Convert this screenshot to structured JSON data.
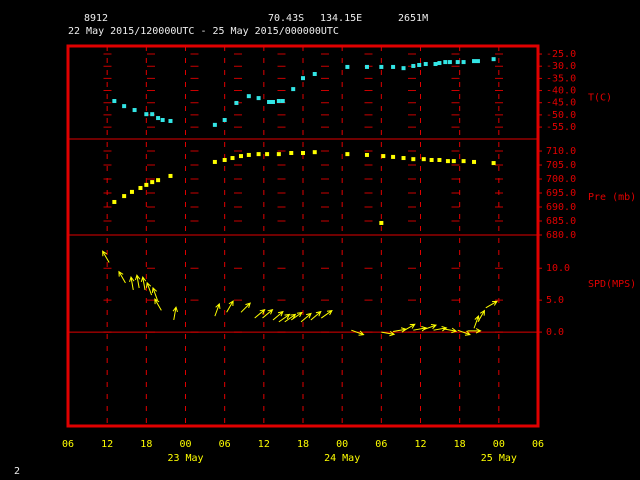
{
  "header": {
    "station": "8912",
    "latitude": "70.43S",
    "longitude": "134.15E",
    "altitude": "2651M",
    "period": "22 May 2015/120000UTC - 25 May 2015/000000UTC"
  },
  "page_number": "2",
  "x_axis": {
    "xlim": [
      6,
      78
    ],
    "xticks": [
      {
        "value": 6,
        "label": "06"
      },
      {
        "value": 12,
        "label": "12"
      },
      {
        "value": 18,
        "label": "18"
      },
      {
        "value": 24,
        "label": "00"
      },
      {
        "value": 30,
        "label": "06"
      },
      {
        "value": 36,
        "label": "12"
      },
      {
        "value": 42,
        "label": "18"
      },
      {
        "value": 48,
        "label": "00"
      },
      {
        "value": 54,
        "label": "06"
      },
      {
        "value": 60,
        "label": "12"
      },
      {
        "value": 66,
        "label": "18"
      },
      {
        "value": 72,
        "label": "00"
      },
      {
        "value": 78,
        "label": "06"
      }
    ],
    "day_labels": [
      {
        "value": 24,
        "label": "23 May"
      },
      {
        "value": 48,
        "label": "24 May"
      },
      {
        "value": 72,
        "label": "25 May"
      }
    ]
  },
  "chart_data": [
    {
      "type": "scatter",
      "unit_label": "T(C)",
      "color": "#33e6e6",
      "ylim": [
        -59.9,
        -21.7
      ],
      "yticks": [
        {
          "value": -25,
          "label": "-25.0"
        },
        {
          "value": -30,
          "label": "-30.0"
        },
        {
          "value": -35,
          "label": "-35.0"
        },
        {
          "value": -40,
          "label": "-40.0"
        },
        {
          "value": -45,
          "label": "-45.0"
        },
        {
          "value": -50,
          "label": "-50.0"
        },
        {
          "value": -55,
          "label": "-55.0"
        }
      ],
      "x": [
        13.1,
        14.6,
        16.2,
        18.0,
        18.9,
        19.8,
        20.5,
        21.7,
        28.5,
        30.0,
        31.8,
        33.7,
        35.2,
        36.8,
        37.4,
        38.3,
        38.9,
        40.5,
        42.0,
        43.8,
        48.8,
        51.8,
        54.0,
        55.8,
        57.4,
        58.9,
        59.8,
        60.8,
        62.3,
        62.9,
        63.8,
        64.5,
        65.7,
        66.6,
        68.2,
        68.8,
        71.2
      ],
      "values": [
        -44.3,
        -46.4,
        -48.0,
        -49.7,
        -49.7,
        -51.3,
        -52.1,
        -52.5,
        -54.1,
        -52.1,
        -45.1,
        -42.3,
        -43.1,
        -44.7,
        -44.7,
        -44.3,
        -44.3,
        -39.4,
        -34.9,
        -33.2,
        -30.3,
        -30.3,
        -30.3,
        -30.3,
        -30.8,
        -29.9,
        -29.5,
        -29.1,
        -29.1,
        -28.7,
        -28.3,
        -28.3,
        -28.3,
        -28.3,
        -27.9,
        -27.9,
        -27.1
      ]
    },
    {
      "type": "scatter",
      "unit_label": "Pre (mb)",
      "color": "#ffff00",
      "ylim": [
        680,
        714.3
      ],
      "yticks": [
        {
          "value": 680,
          "label": "680.0"
        },
        {
          "value": 685,
          "label": "685.0"
        },
        {
          "value": 690,
          "label": "690.0"
        },
        {
          "value": 695,
          "label": "695.0"
        },
        {
          "value": 700,
          "label": "700.0"
        },
        {
          "value": 705,
          "label": "705.0"
        },
        {
          "value": 710,
          "label": "710.0"
        }
      ],
      "x": [
        13.1,
        14.6,
        15.8,
        17.1,
        18.0,
        18.9,
        19.8,
        21.7,
        28.5,
        30.0,
        31.2,
        32.5,
        33.7,
        35.2,
        36.5,
        38.3,
        40.2,
        42.0,
        43.8,
        48.8,
        51.8,
        54.0,
        54.3,
        55.8,
        57.4,
        58.9,
        60.5,
        61.7,
        62.9,
        64.2,
        65.1,
        66.6,
        68.2,
        71.2
      ],
      "values": [
        691.8,
        693.9,
        695.4,
        696.8,
        697.9,
        698.9,
        699.6,
        701.1,
        706.1,
        706.8,
        707.5,
        708.2,
        708.6,
        708.9,
        708.9,
        708.9,
        709.3,
        709.3,
        709.6,
        708.9,
        708.6,
        684.3,
        708.2,
        707.9,
        707.5,
        707.1,
        707.1,
        706.8,
        706.8,
        706.4,
        706.4,
        706.4,
        706.1,
        705.7
      ]
    },
    {
      "type": "wind",
      "unit_label": "SPD(MPS)",
      "color": "#ffff00",
      "ylim": [
        -14.7,
        15.2
      ],
      "zero_line": true,
      "yticks": [
        {
          "value": 0,
          "label": "0.0"
        },
        {
          "value": 5,
          "label": "5.0"
        },
        {
          "value": 10,
          "label": "10.0"
        }
      ],
      "x": [
        12.3,
        14.8,
        16.0,
        16.9,
        17.8,
        18.8,
        19.7,
        20.3,
        22.2,
        28.5,
        30.3,
        32.5,
        34.6,
        35.8,
        37.4,
        38.3,
        39.2,
        40.2,
        41.7,
        43.2,
        44.8,
        49.4,
        54.0,
        55.8,
        57.4,
        58.9,
        60.5,
        62.0,
        63.5,
        65.7,
        67.2,
        68.2,
        68.8,
        70.0
      ],
      "values": [
        10.9,
        7.7,
        6.6,
        6.9,
        6.6,
        5.8,
        5.0,
        3.4,
        1.9,
        2.5,
        3.1,
        3.1,
        2.2,
        2.2,
        1.9,
        1.6,
        1.6,
        1.9,
        1.6,
        1.9,
        2.2,
        0.3,
        0.0,
        0.1,
        0.2,
        0.3,
        0.4,
        0.3,
        0.5,
        0.3,
        0.2,
        0.6,
        1.6,
        3.8
      ],
      "directions": [
        330,
        330,
        350,
        350,
        350,
        340,
        340,
        330,
        10,
        20,
        30,
        45,
        50,
        50,
        50,
        55,
        55,
        55,
        50,
        50,
        55,
        110,
        100,
        80,
        60,
        80,
        70,
        80,
        100,
        110,
        90,
        20,
        30,
        60
      ]
    }
  ]
}
